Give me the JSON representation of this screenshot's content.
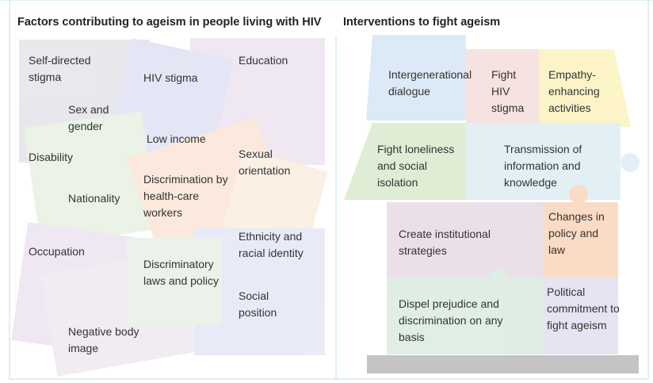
{
  "left": {
    "title": "Factors contributing to ageism in people living with HIV",
    "factors": [
      "Self-directed stigma",
      "HIV stigma",
      "Education",
      "Sex and gender",
      "Low income",
      "Disability",
      "Sexual orientation",
      "Discrimination by health-care workers",
      "Nationality",
      "Ethnicity and racial identity",
      "Occupation",
      "Discriminatory laws and policy",
      "Social position",
      "Negative body image"
    ]
  },
  "right": {
    "title": "Interventions to fight ageism",
    "interventions": [
      "Intergenerational dialogue",
      "Fight HIV stigma",
      "Empathy-enhancing activities",
      "Fight loneliness and social isolation",
      "Transmission of information and knowledge",
      "Create institutional strategies",
      "Changes in policy and law",
      "Dispel prejudice and discrimination on any basis",
      "Political commitment to fight ageism"
    ]
  }
}
